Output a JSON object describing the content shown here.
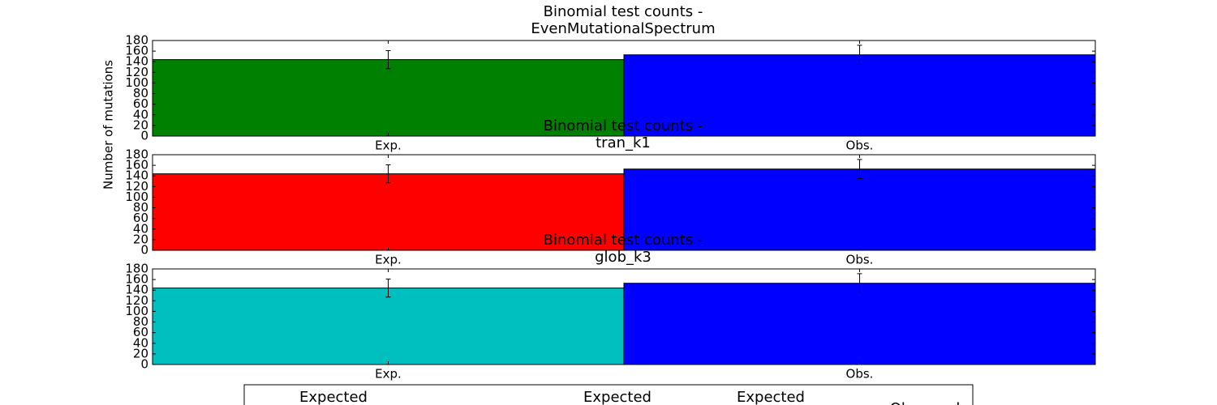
{
  "chart_data": [
    {
      "type": "bar",
      "title": [
        "Binomial test counts -",
        "EvenMutationalSpectrum"
      ],
      "ylabel": "Number of mutations",
      "categories": [
        "Exp.",
        "Obs."
      ],
      "values": [
        144,
        153
      ],
      "errors": [
        17,
        18
      ],
      "colors": [
        "#008000",
        "#0000ff"
      ],
      "ylim": [
        0,
        180
      ],
      "yticks": [
        0,
        20,
        40,
        60,
        80,
        100,
        120,
        140,
        160,
        180
      ]
    },
    {
      "type": "bar",
      "title": [
        "Binomial test counts -",
        "tran_k1"
      ],
      "categories": [
        "Exp.",
        "Obs."
      ],
      "values": [
        144,
        153
      ],
      "errors": [
        17,
        18
      ],
      "colors": [
        "#ff0000",
        "#0000ff"
      ],
      "ylim": [
        0,
        180
      ],
      "yticks": [
        0,
        20,
        40,
        60,
        80,
        100,
        120,
        140,
        160,
        180
      ]
    },
    {
      "type": "bar",
      "title": [
        "Binomial test counts -",
        "glob_k3"
      ],
      "categories": [
        "Exp.",
        "Obs."
      ],
      "values": [
        144,
        153
      ],
      "errors": [
        17,
        18
      ],
      "colors": [
        "#00bfbf",
        "#0000ff"
      ],
      "ylim": [
        0,
        180
      ],
      "yticks": [
        0,
        20,
        40,
        60,
        80,
        100,
        120,
        140,
        160,
        180
      ]
    }
  ],
  "legend": [
    "Expected",
    "Expected",
    "Expected",
    "Observed"
  ]
}
